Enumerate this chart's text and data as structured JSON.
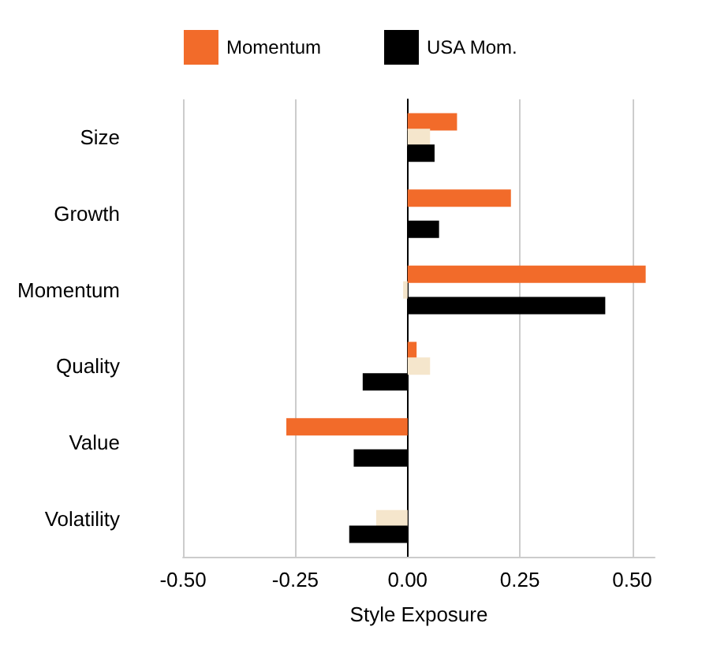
{
  "chart_data": {
    "type": "bar",
    "orientation": "horizontal",
    "xlabel": "Style Exposure",
    "categories": [
      "Size",
      "Growth",
      "Momentum",
      "Quality",
      "Value",
      "Volatility"
    ],
    "series": [
      {
        "name": "Momentum",
        "color": "#f26b2a",
        "values": [
          0.11,
          0.23,
          0.53,
          0.02,
          -0.27,
          0.0
        ]
      },
      {
        "color": "#f5e6cc",
        "values": [
          0.05,
          null,
          -0.01,
          0.05,
          0.0,
          -0.07
        ]
      },
      {
        "name": "USA Mom.",
        "color": "#000000",
        "values": [
          0.06,
          0.07,
          0.44,
          -0.1,
          -0.12,
          -0.13
        ]
      }
    ],
    "xlim": [
      -0.5,
      0.55
    ],
    "xticks": [
      {
        "value": -0.5,
        "label": "-0.50"
      },
      {
        "value": -0.25,
        "label": "-0.25"
      },
      {
        "value": 0,
        "label": "0.00"
      },
      {
        "value": 0.25,
        "label": "0.25"
      },
      {
        "value": 0.5,
        "label": "0.50"
      }
    ],
    "grid": "x",
    "legend": "top"
  }
}
